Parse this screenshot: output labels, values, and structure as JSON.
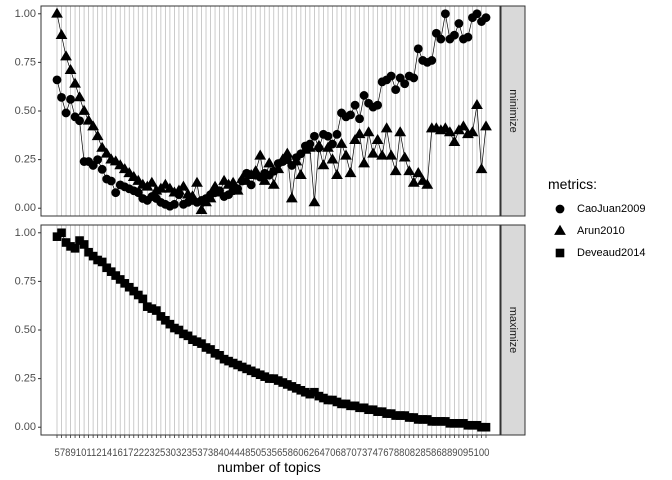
{
  "chart_data": {
    "type": "line",
    "xlabel": "number of topics",
    "x_tick_labels": [
      "5",
      "6",
      "7",
      "8",
      "10",
      "12",
      "14",
      "16",
      "18",
      "20",
      "22",
      "24",
      "26",
      "28",
      "30",
      "32",
      "34",
      "36",
      "38",
      "40",
      "42",
      "44",
      "46",
      "48",
      "50",
      "52",
      "54",
      "56",
      "58",
      "60",
      "62",
      "64",
      "66",
      "68",
      "70",
      "72",
      "74",
      "76",
      "78",
      "80",
      "82",
      "84",
      "86",
      "88",
      "90",
      "92",
      "94",
      "96",
      "98",
      "100"
    ],
    "x_tick_overlap_render": "5789101121416172223253032353738404448505356586062647068707374767880828586889095100",
    "x": [
      5,
      6,
      7,
      8,
      9,
      10,
      11,
      12,
      13,
      14,
      15,
      16,
      17,
      18,
      19,
      20,
      21,
      22,
      23,
      24,
      25,
      26,
      27,
      28,
      29,
      30,
      31,
      32,
      33,
      34,
      35,
      36,
      37,
      38,
      39,
      40,
      41,
      42,
      43,
      44,
      45,
      46,
      47,
      48,
      49,
      50,
      51,
      52,
      53,
      54,
      55,
      56,
      57,
      58,
      59,
      60,
      61,
      62,
      63,
      64,
      65,
      66,
      67,
      68,
      69,
      70,
      71,
      72,
      73,
      74,
      75,
      76,
      77,
      78,
      79,
      80,
      81,
      82,
      83,
      84,
      85,
      86,
      87,
      88,
      89,
      90,
      91,
      92,
      93,
      94,
      95,
      96,
      97,
      98,
      99,
      100
    ],
    "y_tick_labels": [
      "0.00",
      "0.25",
      "0.50",
      "0.75",
      "1.00"
    ],
    "ylim": [
      -0.04,
      1.04
    ],
    "facets": [
      {
        "label": "minimize",
        "series": [
          {
            "name": "CaoJuan2009",
            "shape": "circle",
            "values": [
              0.66,
              0.57,
              0.49,
              0.56,
              0.47,
              0.45,
              0.24,
              0.24,
              0.22,
              0.25,
              0.2,
              0.15,
              0.14,
              0.08,
              0.12,
              0.11,
              0.1,
              0.09,
              0.08,
              0.05,
              0.04,
              0.06,
              0.05,
              0.03,
              0.02,
              0.01,
              0.02,
              0.07,
              0.02,
              0.03,
              0.04,
              0.03,
              0.04,
              0.05,
              0.07,
              0.08,
              0.09,
              0.06,
              0.07,
              0.09,
              0.1,
              0.14,
              0.18,
              0.12,
              0.17,
              0.16,
              0.18,
              0.17,
              0.19,
              0.23,
              0.24,
              0.25,
              0.22,
              0.26,
              0.28,
              0.32,
              0.33,
              0.37,
              0.31,
              0.38,
              0.37,
              0.33,
              0.38,
              0.49,
              0.47,
              0.48,
              0.53,
              0.46,
              0.58,
              0.54,
              0.52,
              0.53,
              0.65,
              0.66,
              0.68,
              0.61,
              0.67,
              0.64,
              0.68,
              0.67,
              0.82,
              0.76,
              0.75,
              0.76,
              0.9,
              0.87,
              1.0,
              0.87,
              0.89,
              0.95,
              0.87,
              0.88,
              0.98,
              1.0,
              0.96,
              0.98
            ]
          },
          {
            "name": "Arun2010",
            "shape": "triangle",
            "values": [
              1.0,
              0.89,
              0.78,
              0.71,
              0.64,
              0.57,
              0.5,
              0.45,
              0.42,
              0.37,
              0.31,
              0.28,
              0.25,
              0.24,
              0.22,
              0.2,
              0.18,
              0.16,
              0.14,
              0.12,
              0.11,
              0.13,
              0.09,
              0.1,
              0.12,
              0.1,
              0.08,
              0.09,
              0.11,
              0.07,
              0.06,
              0.13,
              -0.01,
              0.03,
              0.05,
              0.11,
              0.08,
              0.14,
              0.12,
              0.13,
              0.09,
              0.15,
              0.14,
              0.17,
              0.19,
              0.27,
              0.14,
              0.23,
              0.12,
              0.2,
              0.25,
              0.28,
              0.05,
              0.24,
              0.17,
              0.3,
              0.31,
              0.03,
              0.32,
              0.22,
              0.31,
              0.25,
              0.17,
              0.33,
              0.27,
              0.18,
              0.35,
              0.38,
              0.23,
              0.39,
              0.28,
              0.35,
              0.27,
              0.41,
              0.27,
              0.19,
              0.39,
              0.26,
              0.19,
              0.13,
              0.18,
              0.14,
              0.12,
              0.41,
              0.41,
              0.4,
              0.41,
              0.39,
              0.34,
              0.4,
              0.42,
              0.38,
              0.39,
              0.53,
              0.2,
              0.42
            ]
          }
        ]
      },
      {
        "label": "maximize",
        "series": [
          {
            "name": "Deveaud2014",
            "shape": "square",
            "values": [
              0.98,
              1.0,
              0.95,
              0.93,
              0.92,
              0.96,
              0.94,
              0.9,
              0.88,
              0.86,
              0.85,
              0.82,
              0.8,
              0.78,
              0.76,
              0.74,
              0.72,
              0.7,
              0.68,
              0.66,
              0.62,
              0.61,
              0.6,
              0.57,
              0.55,
              0.53,
              0.51,
              0.5,
              0.48,
              0.47,
              0.45,
              0.44,
              0.43,
              0.41,
              0.4,
              0.38,
              0.37,
              0.35,
              0.34,
              0.33,
              0.32,
              0.31,
              0.3,
              0.29,
              0.28,
              0.27,
              0.26,
              0.25,
              0.25,
              0.24,
              0.23,
              0.22,
              0.21,
              0.2,
              0.19,
              0.18,
              0.17,
              0.18,
              0.16,
              0.15,
              0.14,
              0.14,
              0.13,
              0.12,
              0.12,
              0.11,
              0.11,
              0.1,
              0.1,
              0.09,
              0.09,
              0.08,
              0.08,
              0.07,
              0.07,
              0.06,
              0.06,
              0.06,
              0.05,
              0.05,
              0.04,
              0.04,
              0.04,
              0.03,
              0.03,
              0.03,
              0.03,
              0.02,
              0.02,
              0.02,
              0.02,
              0.01,
              0.01,
              0.01,
              0.0,
              0.0
            ]
          }
        ]
      }
    ],
    "legend": {
      "title": "metrics:",
      "position": "right",
      "entries": [
        {
          "label": "CaoJuan2009",
          "shape": "circle"
        },
        {
          "label": "Arun2010",
          "shape": "triangle"
        },
        {
          "label": "Deveaud2014",
          "shape": "square"
        }
      ]
    },
    "grid": {
      "vertical_major": true,
      "horizontal": false
    },
    "colors": {
      "points": "#000000",
      "grid": "#bebebe",
      "strip_fill": "#d9d9d9",
      "panel_border": "#333333"
    }
  }
}
